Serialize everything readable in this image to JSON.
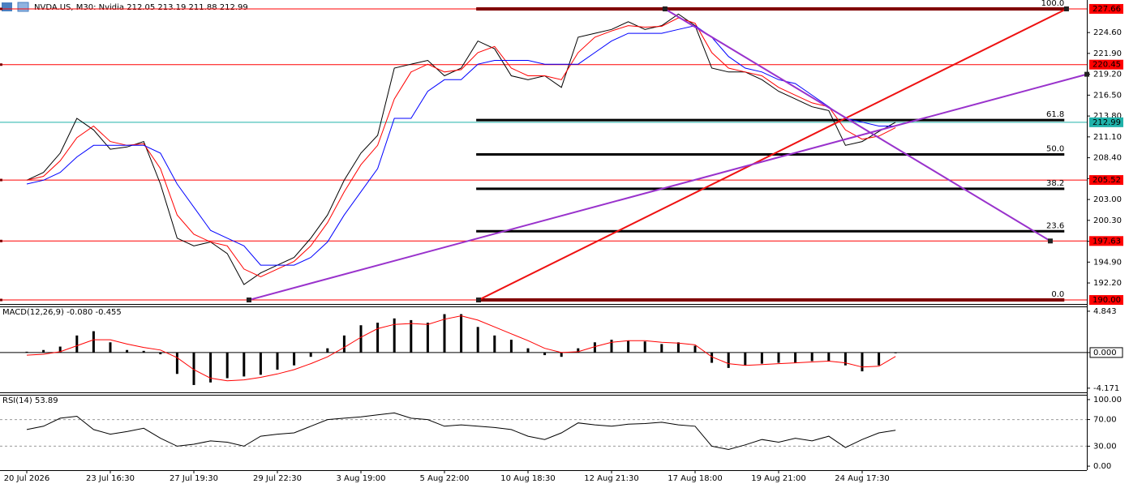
{
  "chart_data": [
    {
      "type": "line",
      "title": "NVDA.US, M30:  Nvidia  212.05 213.19 211.88 212.99",
      "categories": [
        "20 Jul 2026",
        null,
        null,
        null,
        null,
        "23 Jul 16:30",
        null,
        null,
        null,
        null,
        "27 Jul 19:30",
        null,
        null,
        null,
        null,
        "29 Jul 22:30",
        null,
        null,
        null,
        null,
        "3 Aug 19:00",
        null,
        null,
        null,
        null,
        "5 Aug 22:00",
        null,
        null,
        null,
        null,
        "10 Aug 18:30",
        null,
        null,
        null,
        null,
        "12 Aug 21:30",
        null,
        null,
        null,
        null,
        "17 Aug 18:00",
        null,
        null,
        null,
        null,
        "19 Aug 21:00",
        null,
        null,
        null,
        null,
        "24 Aug 17:30",
        null,
        null
      ],
      "series": [
        {
          "color": "#000000",
          "values": [
            205.5,
            206.5,
            209,
            213.5,
            212,
            209.5,
            209.8,
            210.5,
            205,
            198,
            197,
            197.5,
            196,
            192,
            193.5,
            194.5,
            195.5,
            198,
            201,
            205.5,
            209,
            211.3,
            220,
            220.5,
            221,
            219,
            220,
            223.5,
            222.5,
            219,
            218.5,
            219,
            217.5,
            224,
            224.5,
            225,
            226,
            225,
            225.5,
            227,
            225.5,
            220,
            219.5,
            219.5,
            218.5,
            217,
            216,
            215,
            214.5,
            210,
            210.5,
            211.8,
            212.99
          ]
        },
        {
          "color": "#ff0000",
          "values": [
            205.5,
            206,
            208,
            211,
            212.5,
            210.5,
            210,
            210.2,
            207,
            201,
            198.5,
            197.5,
            197,
            194,
            193,
            194,
            195,
            197,
            200,
            204,
            207.5,
            210,
            216,
            219.5,
            220.5,
            219.5,
            219.8,
            222,
            222.8,
            220,
            219,
            219,
            218.5,
            222,
            224,
            224.8,
            225.5,
            225.3,
            225.4,
            226.5,
            225.8,
            222,
            220,
            219.5,
            219,
            217.5,
            216.5,
            215.5,
            215,
            212,
            210.8,
            211.2,
            212.3
          ]
        },
        {
          "color": "#0000ff",
          "values": [
            205,
            205.5,
            206.5,
            208.5,
            210,
            210,
            210,
            210,
            209,
            205,
            202,
            199,
            198,
            197,
            194.5,
            194.5,
            194.5,
            195.5,
            197.5,
            201,
            204,
            207,
            213.5,
            213.5,
            217,
            218.5,
            218.5,
            220.5,
            221,
            221,
            221,
            220.5,
            220.5,
            220.5,
            222,
            223.5,
            224.5,
            224.5,
            224.5,
            225,
            225.5,
            224,
            221.5,
            220,
            219.5,
            218.5,
            218,
            216.5,
            215,
            213.5,
            213,
            212.5,
            212.5
          ]
        }
      ],
      "ylim": [
        189.48,
        228.81
      ],
      "yticks": [
        {
          "value": 224.6,
          "label": "224.60"
        },
        {
          "value": 221.9,
          "label": "221.90"
        },
        {
          "value": 219.2,
          "label": "219.20"
        },
        {
          "value": 216.5,
          "label": "216.50"
        },
        {
          "value": 213.8,
          "label": "213.80"
        },
        {
          "value": 211.1,
          "label": "211.10"
        },
        {
          "value": 208.4,
          "label": "208.40"
        },
        {
          "value": 205.7,
          "label": "205.70"
        },
        {
          "value": 203,
          "label": "203.00"
        },
        {
          "value": 200.3,
          "label": "200.30"
        },
        {
          "value": 197.6,
          "label": "197.60"
        },
        {
          "value": 194.9,
          "label": "194.90"
        },
        {
          "value": 192.2,
          "label": "192.20"
        }
      ],
      "levels": [
        227.66,
        220.45,
        205.52,
        197.63,
        {
          "value": 190,
          "label": "190.00"
        }
      ],
      "level_color": "#ff0000",
      "last_price": 212.99,
      "last_price_color": "#20b2aa",
      "fib": {
        "low": 190,
        "high": 227.66,
        "start": 26.9,
        "end": 62.1,
        "levels": [
          {
            "value": 100,
            "label": "100.0"
          },
          {
            "value": 61.8,
            "label": "61.8"
          },
          {
            "value": 50,
            "label": "50.0"
          },
          {
            "value": 38.2,
            "label": "38.2"
          },
          {
            "value": 23.6,
            "label": "23.6"
          },
          {
            "value": 0,
            "label": "0.0"
          }
        ]
      },
      "trendlines": [
        {
          "color": "#ee1111",
          "from": [
            27.04,
            190
          ],
          "to": [
            62.23,
            227.66
          ]
        },
        {
          "color": "#9932cc",
          "from": [
            13.3,
            190
          ],
          "to": [
            63.45,
            219.2
          ]
        },
        {
          "color": "#9932cc",
          "from": [
            38.2,
            227.66
          ],
          "to": [
            61.26,
            197.63
          ]
        }
      ]
    },
    {
      "type": "bar",
      "title": "MACD(12,26,9) -0.080 -0.455",
      "color": "#000000",
      "values": [
        0.1,
        0.3,
        0.7,
        2.0,
        2.5,
        1.2,
        0.3,
        0.2,
        -0.2,
        -2.5,
        -3.8,
        -3.5,
        -3.0,
        -2.8,
        -2.6,
        -2.0,
        -1.5,
        -0.5,
        0.5,
        2.0,
        3.2,
        3.5,
        4.0,
        3.8,
        3.5,
        4.5,
        4.5,
        3.0,
        2.0,
        1.5,
        0.5,
        -0.3,
        -0.5,
        0.5,
        1.2,
        1.5,
        1.4,
        1.3,
        1.0,
        1.2,
        0.8,
        -1.2,
        -1.8,
        -1.5,
        -1.3,
        -1.2,
        -1.2,
        -1.0,
        -1.0,
        -1.5,
        -2.2,
        -1.5,
        -0.08
      ],
      "series": [
        {
          "color": "#ff0000",
          "values": [
            -0.3,
            -0.2,
            0.1,
            0.8,
            1.5,
            1.5,
            1.0,
            0.6,
            0.3,
            -0.6,
            -2.0,
            -3.0,
            -3.3,
            -3.2,
            -2.9,
            -2.5,
            -2.0,
            -1.3,
            -0.5,
            0.6,
            1.8,
            2.8,
            3.3,
            3.4,
            3.3,
            3.9,
            4.3,
            3.8,
            3.0,
            2.2,
            1.4,
            0.5,
            0,
            0.1,
            0.7,
            1.2,
            1.4,
            1.4,
            1.2,
            1.1,
            0.9,
            -0.5,
            -1.3,
            -1.5,
            -1.4,
            -1.3,
            -1.2,
            -1.1,
            -1.0,
            -1.2,
            -1.7,
            -1.6,
            -0.455
          ]
        }
      ],
      "ylim": [
        -4.66,
        5.31
      ],
      "yticks": [
        4.843,
        {
          "value": 0,
          "label": "0.000"
        },
        -4.171
      ]
    },
    {
      "type": "line",
      "title": "RSI(14) 53.89",
      "series": [
        {
          "color": "#000000",
          "values": [
            55,
            60,
            72,
            75,
            55,
            48,
            52,
            57,
            42,
            30,
            33,
            38,
            36,
            30,
            45,
            48,
            50,
            60,
            70,
            72,
            74,
            77,
            80,
            72,
            70,
            60,
            62,
            60,
            58,
            55,
            45,
            40,
            50,
            65,
            62,
            60,
            63,
            64,
            66,
            62,
            60,
            30,
            25,
            32,
            40,
            36,
            42,
            38,
            45,
            28,
            40,
            50,
            53.89
          ]
        }
      ],
      "ylim": [
        -6,
        106
      ],
      "yticks": [
        {
          "value": 100,
          "label": "100.00"
        },
        {
          "value": 70,
          "label": "70.00"
        },
        {
          "value": 30,
          "label": "30.00"
        },
        {
          "value": 0,
          "label": "0.00"
        }
      ],
      "dashed_grid": [
        70,
        30
      ]
    }
  ]
}
